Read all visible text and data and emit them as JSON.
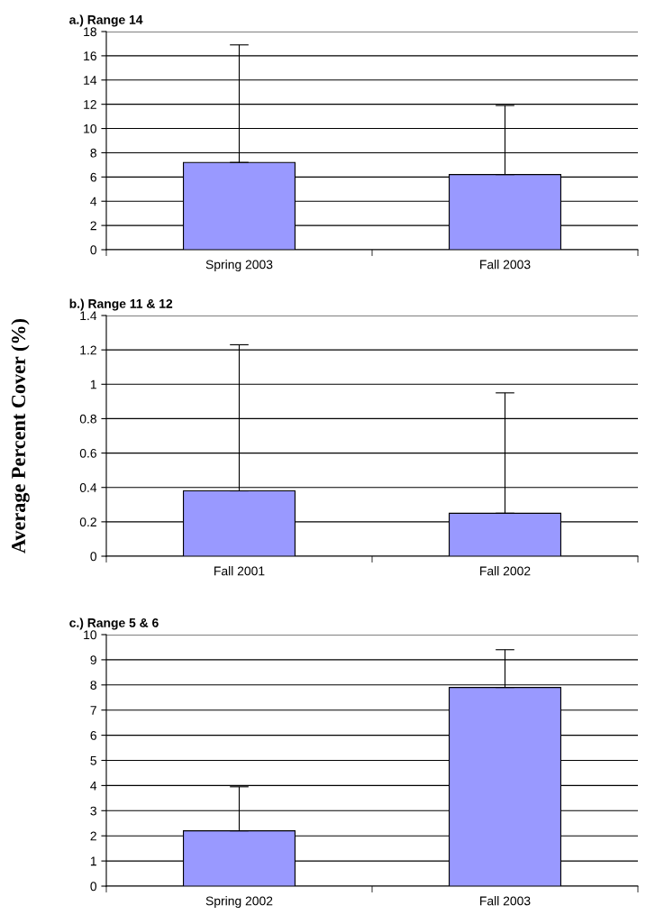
{
  "chart_data": [
    {
      "type": "bar",
      "title": "a.) Range 14",
      "categories": [
        "Spring 2003",
        "Fall 2003"
      ],
      "values": [
        7.2,
        6.2
      ],
      "errors": [
        [
          7.2,
          16.9
        ],
        [
          6.2,
          11.9
        ]
      ],
      "color": "#9999ff",
      "ylim": [
        0,
        18
      ],
      "yticks": [
        0,
        2,
        4,
        6,
        8,
        10,
        12,
        14,
        16,
        18
      ],
      "grid": "y"
    },
    {
      "type": "bar",
      "title": "b.) Range 11 & 12",
      "ylabel": "Average Percent Cover (%)",
      "categories": [
        "Fall 2001",
        "Fall 2002"
      ],
      "values": [
        0.38,
        0.25
      ],
      "errors": [
        [
          0.38,
          1.23
        ],
        [
          0.25,
          0.95
        ]
      ],
      "color": "#9999ff",
      "ylim": [
        0,
        1.4
      ],
      "yticks": [
        0,
        0.2,
        0.4,
        0.6,
        0.8,
        1,
        1.2,
        1.4
      ],
      "grid": "y"
    },
    {
      "type": "bar",
      "title": "c.) Range 5 & 6",
      "categories": [
        "Spring 2002",
        "Fall 2003"
      ],
      "values": [
        2.2,
        7.9
      ],
      "errors": [
        [
          2.2,
          3.95
        ],
        [
          7.9,
          9.4
        ]
      ],
      "color": "#9999ff",
      "ylim": [
        0,
        10
      ],
      "yticks": [
        0,
        1,
        2,
        3,
        4,
        5,
        6,
        7,
        8,
        9,
        10
      ],
      "grid": "y"
    }
  ]
}
